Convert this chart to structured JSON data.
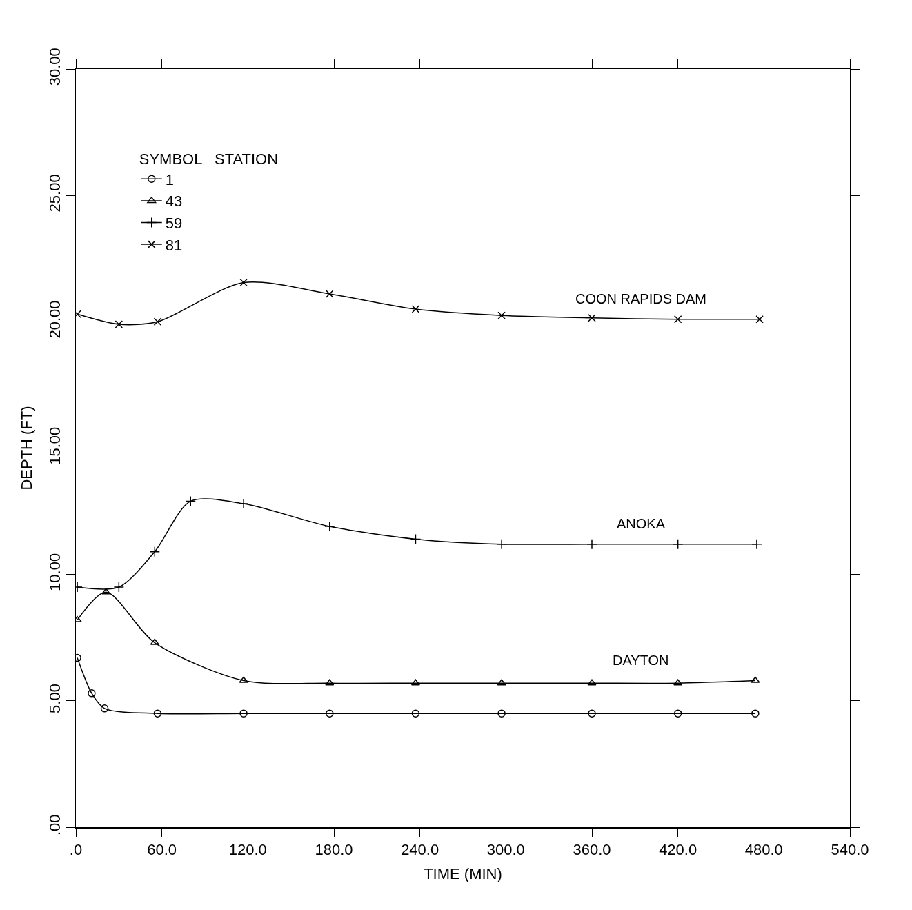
{
  "chart_data": {
    "type": "line",
    "xlabel": "TIME (MIN)",
    "ylabel": "DEPTH (FT)",
    "legend_title": "SYMBOL   STATION",
    "xlim": [
      0,
      540
    ],
    "ylim": [
      0,
      30
    ],
    "xticks": [
      {
        "value": 0,
        "label": ".0"
      },
      {
        "value": 60,
        "label": "60.0"
      },
      {
        "value": 120,
        "label": "120.0"
      },
      {
        "value": 180,
        "label": "180.0"
      },
      {
        "value": 240,
        "label": "240.0"
      },
      {
        "value": 300,
        "label": "300.0"
      },
      {
        "value": 360,
        "label": "360.0"
      },
      {
        "value": 420,
        "label": "420.0"
      },
      {
        "value": 480,
        "label": "480.0"
      },
      {
        "value": 540,
        "label": "540.0"
      }
    ],
    "yticks": [
      {
        "value": 0,
        "label": ".00"
      },
      {
        "value": 5,
        "label": "5.00"
      },
      {
        "value": 10,
        "label": "10.00"
      },
      {
        "value": 15,
        "label": "15.00"
      },
      {
        "value": 20,
        "label": "20.00"
      },
      {
        "value": 25,
        "label": "25.00"
      },
      {
        "value": 30,
        "label": "30.00"
      }
    ],
    "legend": "top left",
    "line_style": "solid",
    "series": [
      {
        "name": "1",
        "color": "#000000",
        "marker": "circle",
        "x": [
          1,
          11,
          20,
          57,
          117,
          177,
          237,
          297,
          360,
          420,
          474
        ],
        "values": [
          6.7,
          5.3,
          4.7,
          4.5,
          4.5,
          4.5,
          4.5,
          4.5,
          4.5,
          4.5,
          4.5
        ]
      },
      {
        "name": "43",
        "color": "#000000",
        "marker": "triangle",
        "x": [
          1,
          21,
          55,
          117,
          177,
          237,
          297,
          360,
          420,
          474
        ],
        "values": [
          8.2,
          9.3,
          7.3,
          5.8,
          5.7,
          5.7,
          5.7,
          5.7,
          5.7,
          5.8
        ]
      },
      {
        "name": "59",
        "color": "#000000",
        "marker": "cross",
        "x": [
          1,
          30,
          55,
          80,
          117,
          177,
          237,
          297,
          360,
          420,
          475
        ],
        "values": [
          9.5,
          9.5,
          10.9,
          12.9,
          12.8,
          11.9,
          11.4,
          11.2,
          11.2,
          11.2,
          11.2
        ]
      },
      {
        "name": "81",
        "color": "#000000",
        "marker": "x",
        "x": [
          1,
          30,
          57,
          117,
          177,
          237,
          297,
          360,
          420,
          477
        ],
        "values": [
          20.3,
          19.9,
          20.0,
          21.55,
          21.1,
          20.5,
          20.25,
          20.15,
          20.1,
          20.1
        ]
      }
    ],
    "annotations": [
      "COON RAPIDS DAM",
      "ANOKA",
      "DAYTON"
    ]
  }
}
